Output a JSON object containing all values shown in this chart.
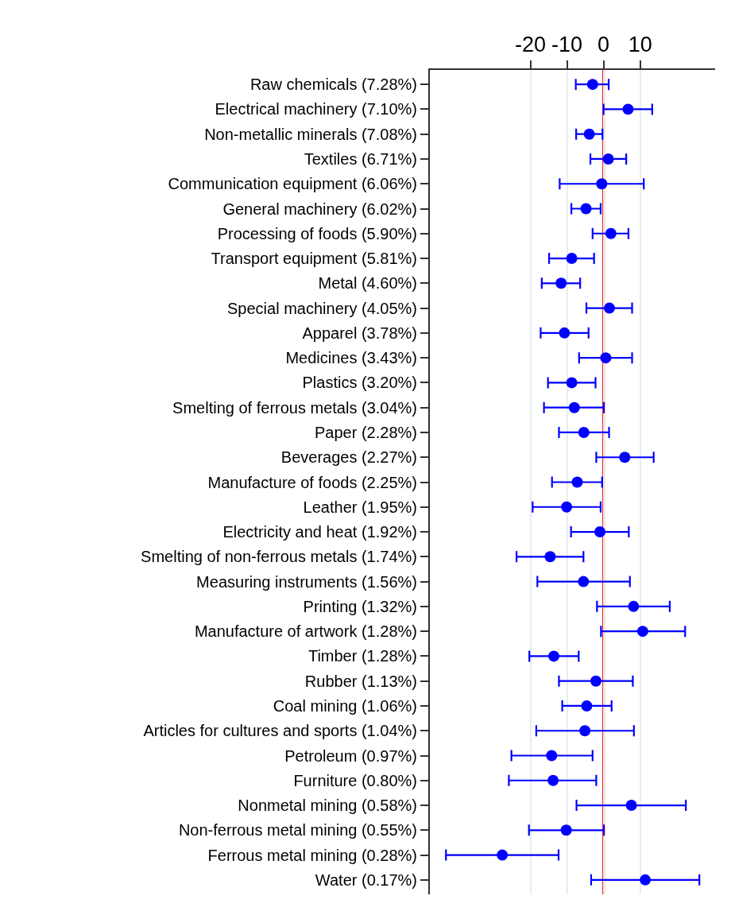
{
  "chart_data": {
    "type": "scatter",
    "categories": [
      "Raw chemicals (7.28%)",
      "Electrical machinery (7.10%)",
      "Non-metallic minerals (7.08%)",
      "Textiles (6.71%)",
      "Communication equipment (6.06%)",
      "General machinery (6.02%)",
      "Processing of foods (5.90%)",
      "Transport equipment (5.81%)",
      "Metal (4.60%)",
      "Special machinery (4.05%)",
      "Apparel (3.78%)",
      "Medicines (3.43%)",
      "Plastics (3.20%)",
      "Smelting of ferrous metals (3.04%)",
      "Paper (2.28%)",
      "Beverages (2.27%)",
      "Manufacture of foods (2.25%)",
      "Leather (1.95%)",
      "Electricity and heat (1.92%)",
      "Smelting of non-ferrous metals (1.74%)",
      "Measuring instruments (1.56%)",
      "Printing (1.32%)",
      "Manufacture of artwork (1.28%)",
      "Timber (1.28%)",
      "Rubber (1.13%)",
      "Coal mining (1.06%)",
      "Articles for cultures and sports (1.04%)",
      "Petroleum (0.97%)",
      "Furniture (0.80%)",
      "Nonmetal mining (0.58%)",
      "Non-ferrous metal mining (0.55%)",
      "Ferrous metal mining (0.28%)",
      "Water (0.17%)"
    ],
    "orientation": "horizontal",
    "values": [
      -3.0,
      6.7,
      -3.9,
      1.3,
      -0.5,
      -4.8,
      2.0,
      -8.7,
      -11.6,
      1.6,
      -10.7,
      0.6,
      -8.7,
      -8.0,
      -5.4,
      5.8,
      -7.2,
      -10.1,
      -1.0,
      -14.6,
      -5.5,
      8.2,
      10.7,
      -13.6,
      -2.1,
      -4.6,
      -5.1,
      -14.2,
      -13.8,
      7.6,
      -10.2,
      -27.7,
      11.4
    ],
    "errors": [
      [
        -7.6,
        1.4
      ],
      [
        0,
        13.3
      ],
      [
        -7.5,
        -0.3
      ],
      [
        -3.6,
        6.2
      ],
      [
        -12.0,
        11.0
      ],
      [
        -8.8,
        -0.8
      ],
      [
        -3.0,
        6.8
      ],
      [
        -14.9,
        -2.6
      ],
      [
        -16.9,
        -6.4
      ],
      [
        -4.7,
        7.8
      ],
      [
        -17.2,
        -4.1
      ],
      [
        -6.7,
        7.8
      ],
      [
        -15.2,
        -2.2
      ],
      [
        -16.3,
        0.1
      ],
      [
        -12.2,
        1.5
      ],
      [
        -2.0,
        13.7
      ],
      [
        -14.1,
        -0.4
      ],
      [
        -19.4,
        -0.8
      ],
      [
        -8.9,
        6.9
      ],
      [
        -23.8,
        -5.5
      ],
      [
        -18.1,
        7.2
      ],
      [
        -1.8,
        18.1
      ],
      [
        -0.7,
        22.3
      ],
      [
        -20.3,
        -6.8
      ],
      [
        -12.2,
        8.0
      ],
      [
        -11.3,
        2.2
      ],
      [
        -18.4,
        8.3
      ],
      [
        -25.2,
        -3.0
      ],
      [
        -25.9,
        -2.0
      ],
      [
        -7.4,
        22.5
      ],
      [
        -20.4,
        0.1
      ],
      [
        -43.1,
        -12.3
      ],
      [
        -3.4,
        26.2
      ]
    ],
    "color": "#0000ff",
    "marker": "circle",
    "xlim": [
      -47.5,
      30.5
    ],
    "xticks": [
      -20,
      -10,
      0,
      10
    ],
    "grid": "x",
    "ref_lines": [
      {
        "axis": "x",
        "value": 0,
        "color": "#ff0000"
      }
    ]
  }
}
